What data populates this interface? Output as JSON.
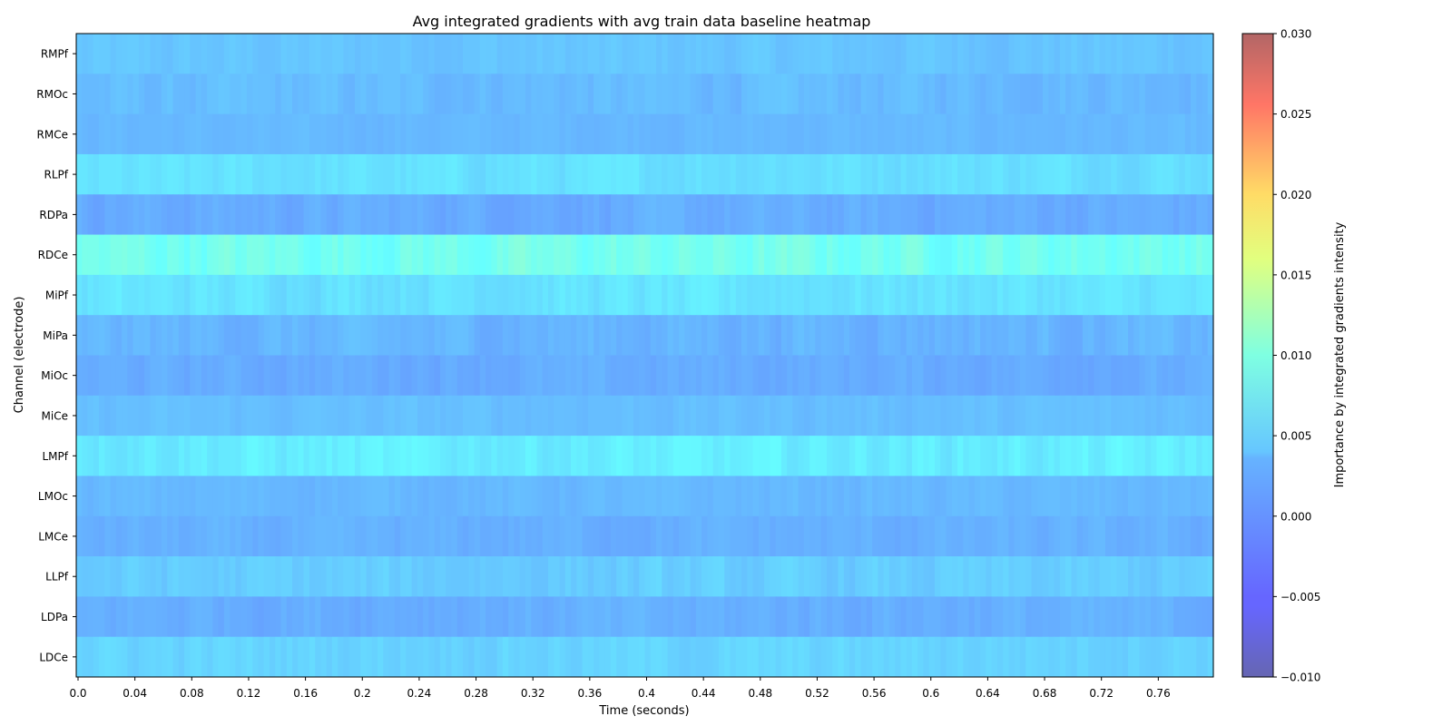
{
  "chart_data": {
    "type": "heatmap",
    "title": "Avg integrated gradients with avg train data baseline heatmap",
    "xlabel": "Time (seconds)",
    "ylabel": "Channel (electrode)",
    "colorbar_label": "Importance by integrated gradients intensity",
    "colormap": "jet",
    "alpha": 0.6,
    "xlim": [
      0.0,
      0.8
    ],
    "x_ticks": [
      "0.0",
      "0.04",
      "0.08",
      "0.12",
      "0.16",
      "0.2",
      "0.24",
      "0.28",
      "0.32",
      "0.36",
      "0.4",
      "0.44",
      "0.48",
      "0.52",
      "0.56",
      "0.6",
      "0.64",
      "0.68",
      "0.72",
      "0.76"
    ],
    "x_tick_values": [
      0.0,
      0.04,
      0.08,
      0.12,
      0.16,
      0.2,
      0.24,
      0.28,
      0.32,
      0.36,
      0.4,
      0.44,
      0.48,
      0.52,
      0.56,
      0.6,
      0.64,
      0.68,
      0.72,
      0.76
    ],
    "colorbar_range": [
      -0.01,
      0.03
    ],
    "colorbar_ticks": [
      "0.030",
      "0.025",
      "0.020",
      "0.015",
      "0.010",
      "0.005",
      "0.000",
      "−0.005",
      "−0.010"
    ],
    "colorbar_tick_values": [
      0.03,
      0.025,
      0.02,
      0.015,
      0.01,
      0.005,
      0.0,
      -0.005,
      -0.01
    ],
    "channels": [
      "RMPf",
      "RMOc",
      "RMCe",
      "RLPf",
      "RDPa",
      "RDCe",
      "MiPf",
      "MiPa",
      "MiOc",
      "MiCe",
      "LMPf",
      "LMOc",
      "LMCe",
      "LLPf",
      "LDPa",
      "LDCe"
    ],
    "n_time_bins": 200,
    "channel_mean_values": [
      0.0012,
      0.0006,
      0.0004,
      0.003,
      -0.0004,
      0.006,
      0.0032,
      0.0002,
      -0.0004,
      0.0008,
      0.0038,
      0.0004,
      -0.0002,
      0.0016,
      -0.0002,
      0.0022
    ],
    "channel_variation": [
      0.0006,
      0.0007,
      0.0004,
      0.0007,
      0.0007,
      0.0012,
      0.0008,
      0.0008,
      0.0006,
      0.0005,
      0.0009,
      0.0005,
      0.0006,
      0.0008,
      0.0007,
      0.0007
    ]
  }
}
